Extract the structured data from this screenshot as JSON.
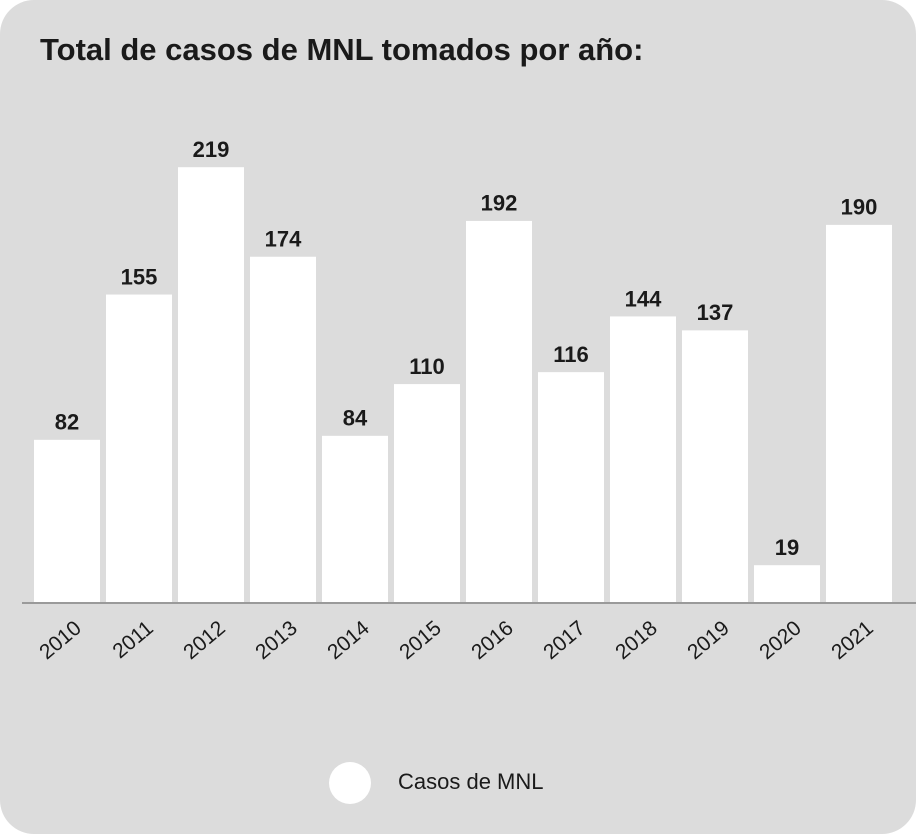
{
  "chart_data": {
    "type": "bar",
    "title": "Total de casos de MNL tomados por año:",
    "categories": [
      "2010",
      "2011",
      "2012",
      "2013",
      "2014",
      "2015",
      "2016",
      "2017",
      "2018",
      "2019",
      "2020",
      "2021"
    ],
    "series": [
      {
        "name": "Casos de MNL",
        "color": "#ffffff",
        "values": [
          82,
          155,
          219,
          174,
          84,
          110,
          192,
          116,
          144,
          137,
          19,
          190
        ]
      }
    ],
    "ylim": [
      0,
      250
    ],
    "legend": "bottom"
  }
}
